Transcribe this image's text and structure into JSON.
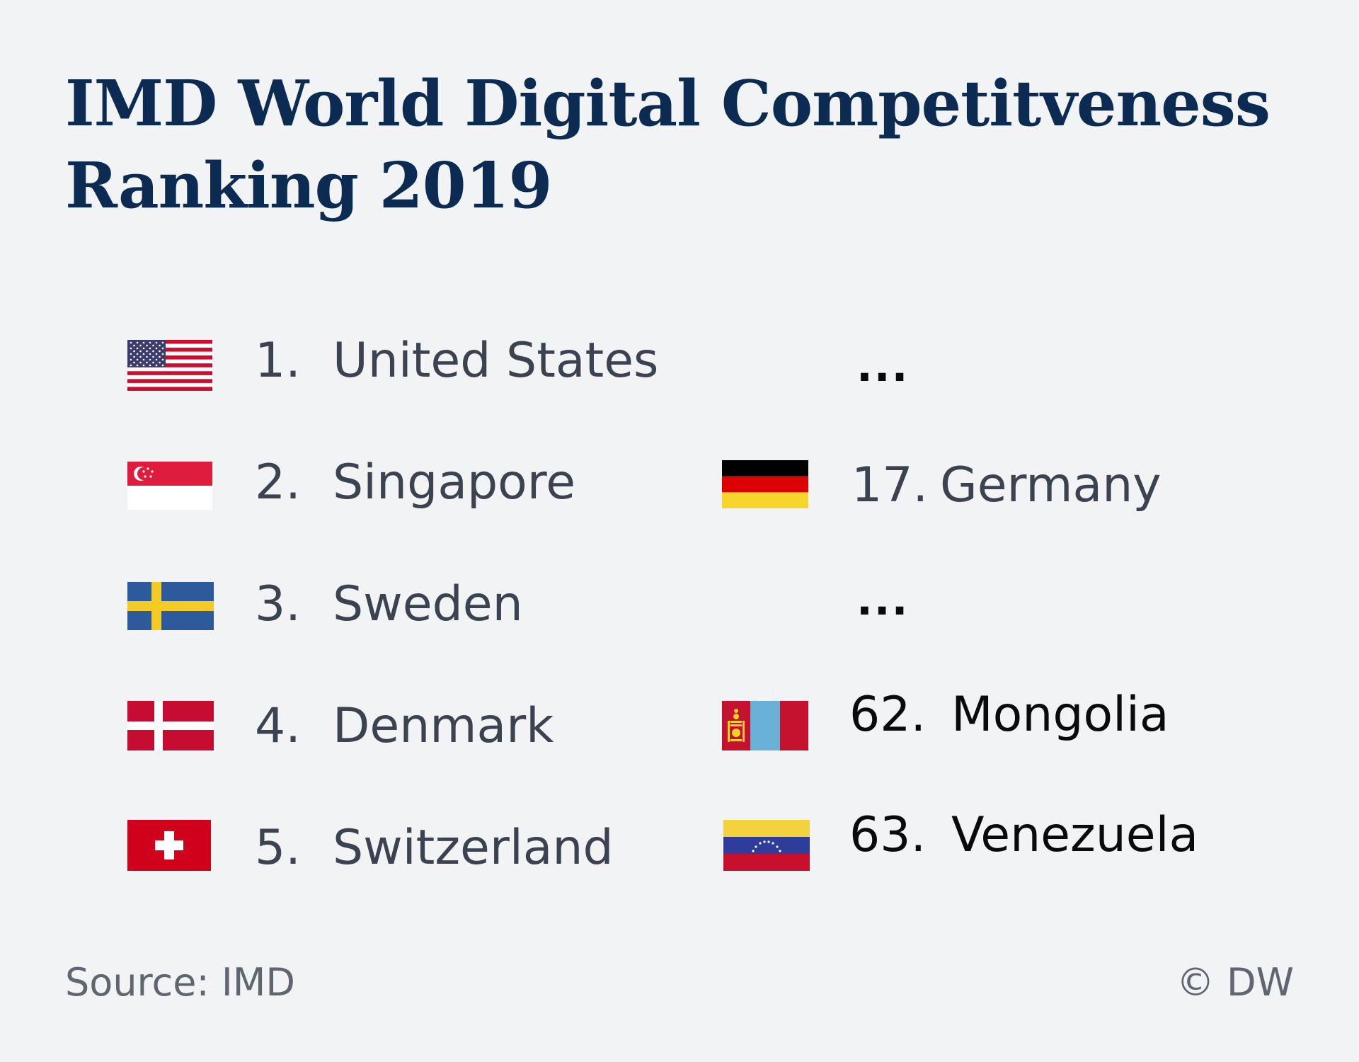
{
  "title": {
    "line1": "IMD World Digital Competitveness",
    "line2": "Ranking 2019"
  },
  "left_column": [
    {
      "rank": "1.",
      "country": "United States",
      "flag_icon": "us-flag-icon"
    },
    {
      "rank": "2.",
      "country": "Singapore",
      "flag_icon": "singapore-flag-icon"
    },
    {
      "rank": "3.",
      "country": "Sweden",
      "flag_icon": "sweden-flag-icon"
    },
    {
      "rank": "4.",
      "country": "Denmark",
      "flag_icon": "denmark-flag-icon"
    },
    {
      "rank": "5.",
      "country": "Switzerland",
      "flag_icon": "switzerland-flag-icon"
    }
  ],
  "right_column": {
    "ellipsis_top": "...",
    "germany": {
      "rank": "17.",
      "country": "Germany",
      "flag_icon": "germany-flag-icon"
    },
    "ellipsis_mid": "...",
    "mongolia": {
      "rank": "62.",
      "country": "Mongolia",
      "flag_icon": "mongolia-flag-icon"
    },
    "venezuela": {
      "rank": "63.",
      "country": "Venezuela",
      "flag_icon": "venezuela-flag-icon"
    }
  },
  "footer": {
    "source": "Source: IMD",
    "credit": "© DW"
  },
  "colors": {
    "background": "#f2f3f5",
    "title": "#0c2b52",
    "text": "#3b4350",
    "footer": "#5f6670"
  }
}
